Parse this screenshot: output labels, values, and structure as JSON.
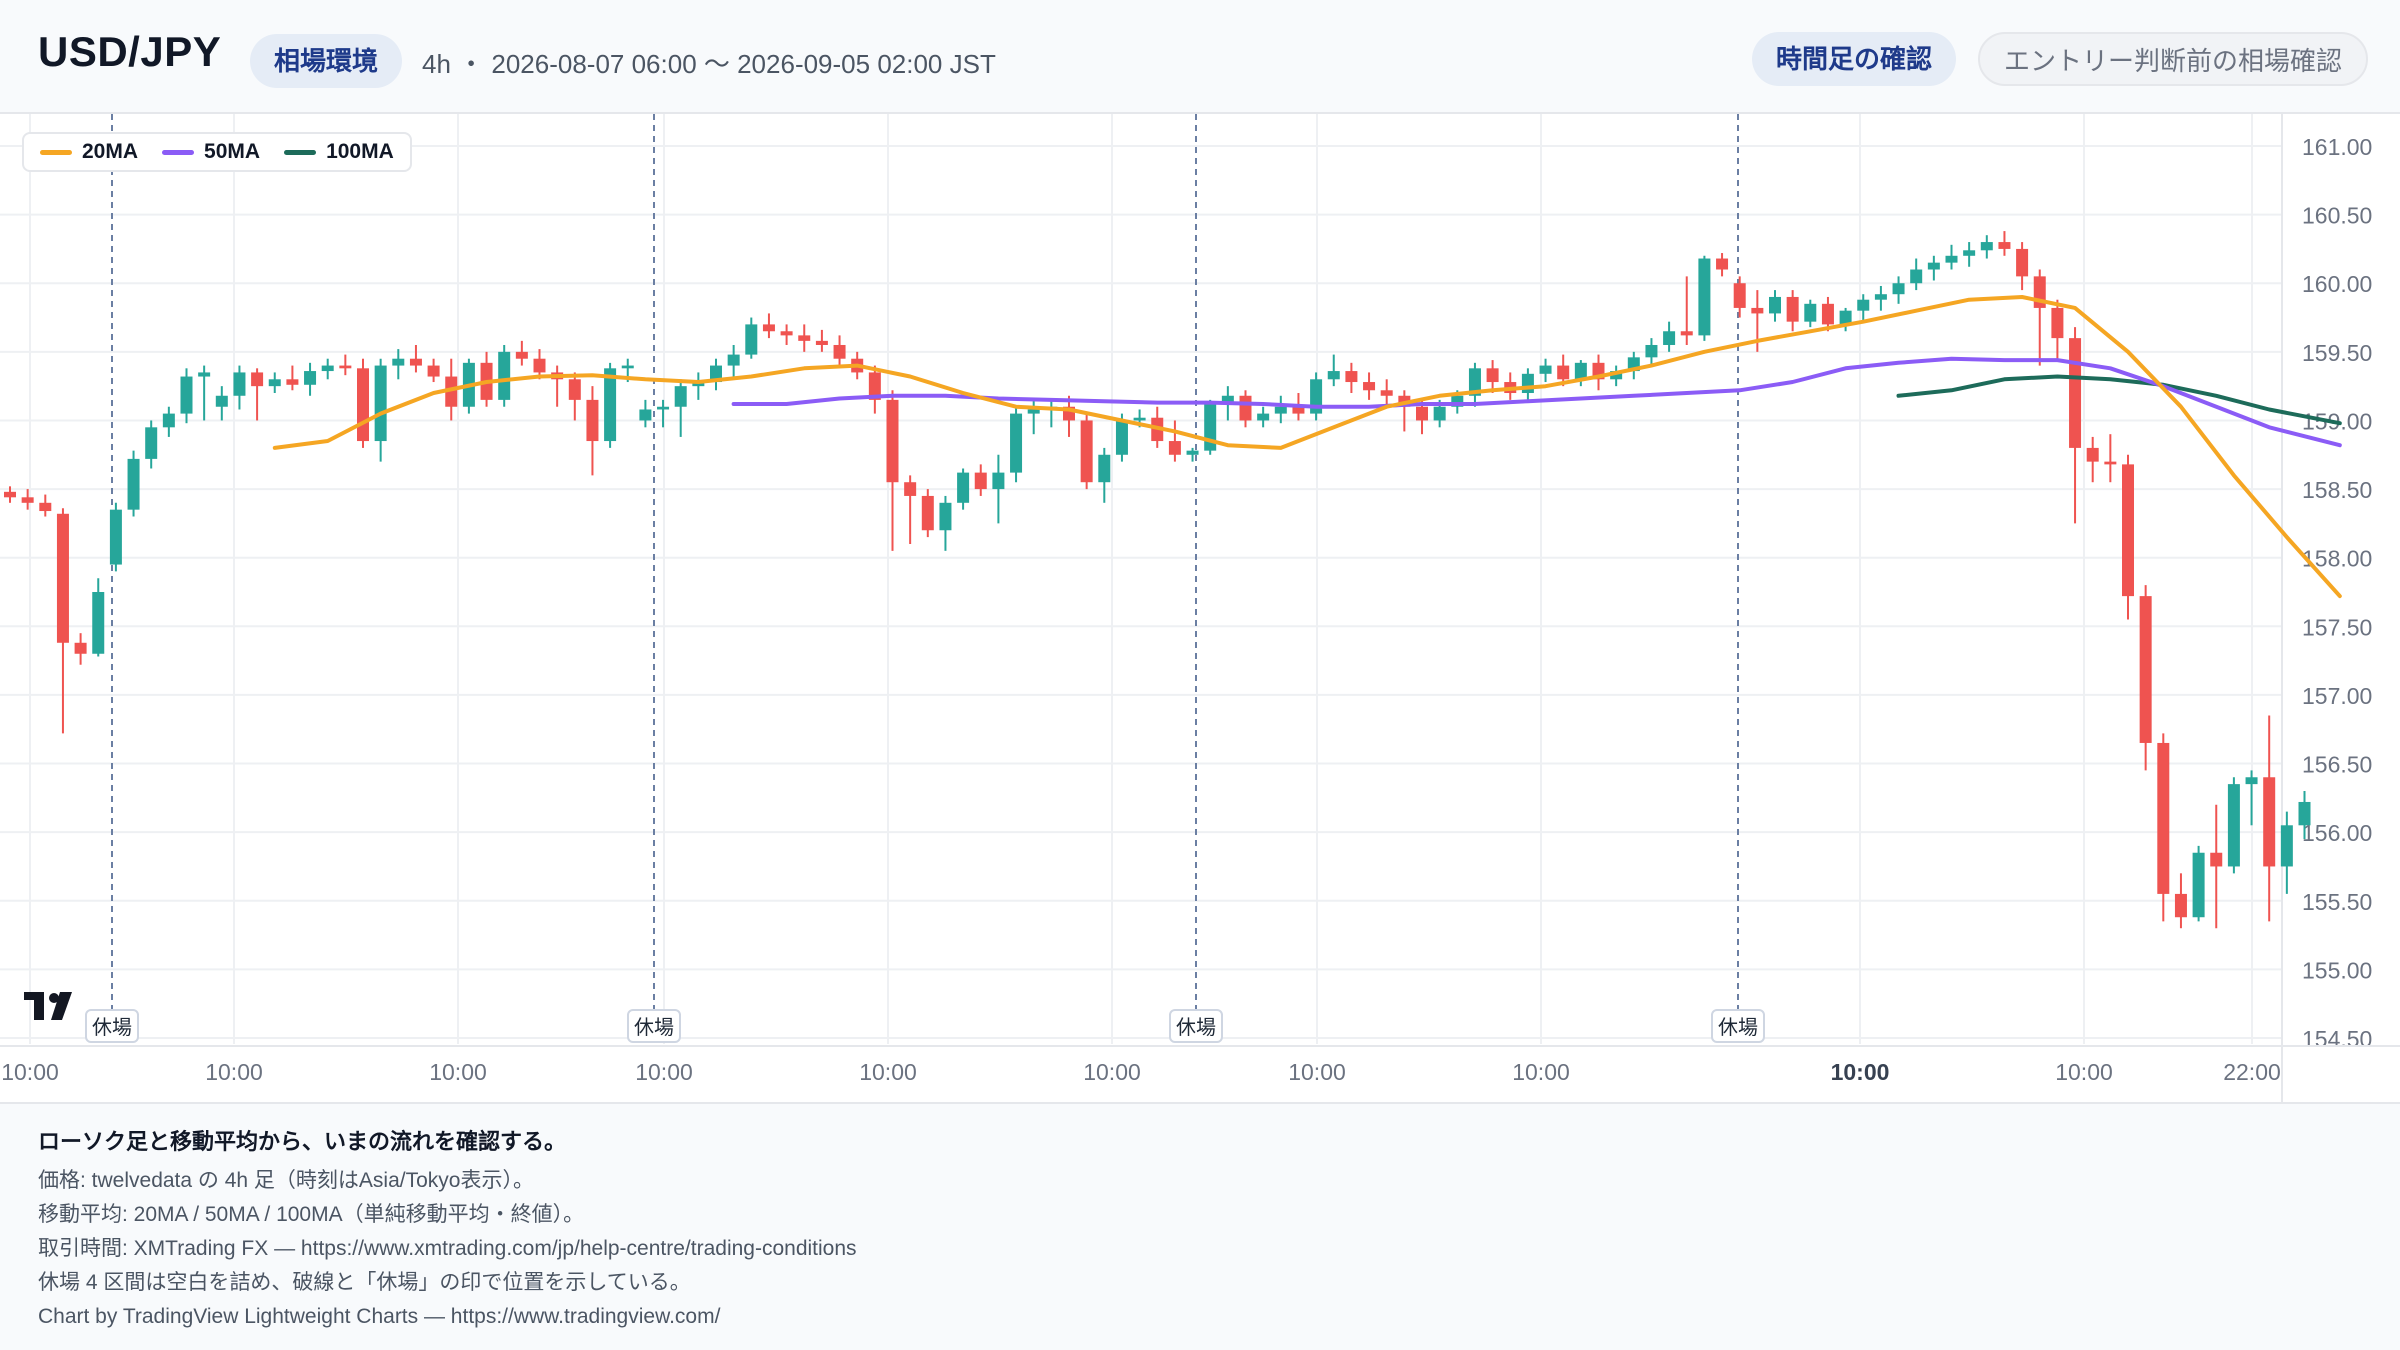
{
  "header": {
    "symbol": "USD/JPY",
    "context_pill": "相場環境",
    "meta": "4h ・ 2026-08-07 06:00 〜 2026-09-05 02:00 JST",
    "time_pill": "時間足の確認",
    "entry_pill": "エントリー判断前の相場確認"
  },
  "legend": {
    "items": [
      {
        "label": "20MA",
        "color": "#f5a623"
      },
      {
        "label": "50MA",
        "color": "#8b5cf6"
      },
      {
        "label": "100MA",
        "color": "#1d6b5a"
      }
    ]
  },
  "colors": {
    "up": "#26a69a",
    "down": "#ef5350",
    "grid": "#eef0f3",
    "break_line": "#6b7fa3"
  },
  "chart_data": {
    "type": "candlestick",
    "y_ticks": [
      "161.00",
      "160.50",
      "160.00",
      "159.50",
      "159.00",
      "158.50",
      "158.00",
      "157.50",
      "157.00",
      "156.50",
      "156.00",
      "155.50",
      "155.00",
      "154.50"
    ],
    "ylim": [
      154.5,
      161.0
    ],
    "x_ticks": [
      {
        "label": "10:00",
        "bold": false
      },
      {
        "label": "10:00",
        "bold": false
      },
      {
        "label": "10:00",
        "bold": false
      },
      {
        "label": "10:00",
        "bold": false
      },
      {
        "label": "10:00",
        "bold": false
      },
      {
        "label": "10:00",
        "bold": false
      },
      {
        "label": "10:00",
        "bold": false
      },
      {
        "label": "10:00",
        "bold": false
      },
      {
        "label": "10:00",
        "bold": true
      },
      {
        "label": "10:00",
        "bold": false
      },
      {
        "label": "22:00",
        "bold": false
      }
    ],
    "market_breaks": [
      "休場",
      "休場",
      "休場",
      "休場"
    ],
    "candles": [
      [
        158.48,
        158.52,
        158.4,
        158.44
      ],
      [
        158.44,
        158.5,
        158.35,
        158.4
      ],
      [
        158.4,
        158.46,
        158.3,
        158.34
      ],
      [
        158.32,
        158.36,
        156.72,
        157.38
      ],
      [
        157.38,
        157.45,
        157.22,
        157.3
      ],
      [
        157.3,
        157.85,
        157.28,
        157.75
      ],
      [
        157.95,
        158.4,
        157.9,
        158.35
      ],
      [
        158.35,
        158.78,
        158.3,
        158.72
      ],
      [
        158.72,
        159.0,
        158.65,
        158.95
      ],
      [
        158.95,
        159.1,
        158.88,
        159.05
      ],
      [
        159.05,
        159.38,
        158.98,
        159.32
      ],
      [
        159.32,
        159.4,
        159.0,
        159.35
      ],
      [
        159.1,
        159.25,
        159.0,
        159.18
      ],
      [
        159.18,
        159.4,
        159.08,
        159.35
      ],
      [
        159.35,
        159.38,
        159.0,
        159.25
      ],
      [
        159.25,
        159.35,
        159.2,
        159.3
      ],
      [
        159.3,
        159.4,
        159.22,
        159.26
      ],
      [
        159.26,
        159.42,
        159.18,
        159.36
      ],
      [
        159.36,
        159.45,
        159.3,
        159.4
      ],
      [
        159.4,
        159.48,
        159.33,
        159.38
      ],
      [
        159.38,
        159.45,
        158.8,
        158.85
      ],
      [
        158.85,
        159.45,
        158.7,
        159.4
      ],
      [
        159.4,
        159.52,
        159.3,
        159.45
      ],
      [
        159.45,
        159.55,
        159.35,
        159.4
      ],
      [
        159.4,
        159.45,
        159.28,
        159.32
      ],
      [
        159.32,
        159.45,
        159.0,
        159.1
      ],
      [
        159.1,
        159.45,
        159.05,
        159.42
      ],
      [
        159.42,
        159.5,
        159.1,
        159.15
      ],
      [
        159.15,
        159.55,
        159.1,
        159.5
      ],
      [
        159.5,
        159.58,
        159.4,
        159.45
      ],
      [
        159.45,
        159.52,
        159.3,
        159.35
      ],
      [
        159.35,
        159.4,
        159.1,
        159.3
      ],
      [
        159.3,
        159.35,
        159.0,
        159.15
      ],
      [
        159.15,
        159.25,
        158.6,
        158.85
      ],
      [
        158.85,
        159.42,
        158.8,
        159.38
      ],
      [
        159.38,
        159.45,
        159.28,
        159.4
      ],
      [
        159.0,
        159.15,
        158.95,
        159.08
      ],
      [
        159.08,
        159.15,
        158.95,
        159.1
      ],
      [
        159.1,
        159.3,
        158.88,
        159.25
      ],
      [
        159.25,
        159.35,
        159.15,
        159.28
      ],
      [
        159.28,
        159.45,
        159.22,
        159.4
      ],
      [
        159.4,
        159.55,
        159.32,
        159.48
      ],
      [
        159.48,
        159.75,
        159.45,
        159.7
      ],
      [
        159.7,
        159.78,
        159.6,
        159.65
      ],
      [
        159.65,
        159.7,
        159.55,
        159.62
      ],
      [
        159.62,
        159.7,
        159.5,
        159.58
      ],
      [
        159.58,
        159.66,
        159.5,
        159.55
      ],
      [
        159.55,
        159.62,
        159.4,
        159.45
      ],
      [
        159.45,
        159.5,
        159.3,
        159.35
      ],
      [
        159.35,
        159.4,
        159.05,
        159.15
      ],
      [
        159.15,
        159.22,
        158.05,
        158.55
      ],
      [
        158.55,
        158.6,
        158.1,
        158.45
      ],
      [
        158.45,
        158.5,
        158.15,
        158.2
      ],
      [
        158.2,
        158.45,
        158.05,
        158.4
      ],
      [
        158.4,
        158.65,
        158.35,
        158.62
      ],
      [
        158.62,
        158.68,
        158.45,
        158.5
      ],
      [
        158.5,
        158.75,
        158.25,
        158.62
      ],
      [
        158.62,
        159.1,
        158.55,
        159.05
      ],
      [
        159.05,
        159.15,
        158.9,
        159.08
      ],
      [
        159.08,
        159.15,
        158.95,
        159.1
      ],
      [
        159.1,
        159.18,
        158.88,
        159.0
      ],
      [
        159.0,
        159.05,
        158.5,
        158.55
      ],
      [
        158.55,
        158.8,
        158.4,
        158.75
      ],
      [
        158.75,
        159.05,
        158.7,
        159.0
      ],
      [
        159.0,
        159.08,
        158.95,
        159.02
      ],
      [
        159.02,
        159.1,
        158.8,
        158.85
      ],
      [
        158.85,
        159.0,
        158.7,
        158.75
      ],
      [
        158.75,
        158.8,
        158.7,
        158.78
      ],
      [
        158.78,
        159.15,
        158.75,
        159.12
      ],
      [
        159.12,
        159.25,
        159.0,
        159.18
      ],
      [
        159.18,
        159.22,
        158.95,
        159.0
      ],
      [
        159.0,
        159.1,
        158.95,
        159.05
      ],
      [
        159.05,
        159.18,
        158.98,
        159.1
      ],
      [
        159.1,
        159.2,
        159.0,
        159.05
      ],
      [
        159.05,
        159.35,
        159.0,
        159.3
      ],
      [
        159.3,
        159.48,
        159.25,
        159.36
      ],
      [
        159.36,
        159.42,
        159.2,
        159.28
      ],
      [
        159.28,
        159.35,
        159.15,
        159.22
      ],
      [
        159.22,
        159.3,
        159.1,
        159.18
      ],
      [
        159.18,
        159.22,
        158.92,
        159.1
      ],
      [
        159.1,
        159.15,
        158.9,
        159.0
      ],
      [
        159.0,
        159.15,
        158.95,
        159.1
      ],
      [
        159.1,
        159.22,
        159.05,
        159.18
      ],
      [
        159.18,
        159.42,
        159.1,
        159.38
      ],
      [
        159.38,
        159.44,
        159.2,
        159.28
      ],
      [
        159.28,
        159.35,
        159.15,
        159.2
      ],
      [
        159.2,
        159.38,
        159.15,
        159.34
      ],
      [
        159.34,
        159.45,
        159.28,
        159.4
      ],
      [
        159.4,
        159.48,
        159.25,
        159.3
      ],
      [
        159.3,
        159.44,
        159.25,
        159.42
      ],
      [
        159.42,
        159.48,
        159.22,
        159.3
      ],
      [
        159.3,
        159.4,
        159.25,
        159.36
      ],
      [
        159.36,
        159.5,
        159.3,
        159.46
      ],
      [
        159.46,
        159.6,
        159.4,
        159.55
      ],
      [
        159.55,
        159.72,
        159.5,
        159.65
      ],
      [
        159.65,
        160.05,
        159.55,
        159.62
      ],
      [
        159.62,
        160.2,
        159.58,
        160.18
      ],
      [
        160.18,
        160.22,
        160.05,
        160.1
      ],
      [
        160.0,
        160.05,
        159.75,
        159.82
      ],
      [
        159.82,
        159.95,
        159.5,
        159.78
      ],
      [
        159.78,
        159.95,
        159.72,
        159.9
      ],
      [
        159.9,
        159.95,
        159.65,
        159.72
      ],
      [
        159.72,
        159.88,
        159.68,
        159.85
      ],
      [
        159.85,
        159.9,
        159.65,
        159.7
      ],
      [
        159.7,
        159.82,
        159.65,
        159.8
      ],
      [
        159.8,
        159.92,
        159.72,
        159.88
      ],
      [
        159.88,
        159.98,
        159.8,
        159.92
      ],
      [
        159.92,
        160.05,
        159.85,
        160.0
      ],
      [
        160.0,
        160.18,
        159.95,
        160.1
      ],
      [
        160.1,
        160.2,
        160.02,
        160.15
      ],
      [
        160.15,
        160.28,
        160.1,
        160.2
      ],
      [
        160.2,
        160.3,
        160.12,
        160.24
      ],
      [
        160.24,
        160.35,
        160.18,
        160.3
      ],
      [
        160.3,
        160.38,
        160.2,
        160.25
      ],
      [
        160.25,
        160.3,
        159.95,
        160.05
      ],
      [
        160.05,
        160.1,
        159.4,
        159.82
      ],
      [
        159.82,
        159.88,
        159.45,
        159.6
      ],
      [
        159.6,
        159.68,
        158.25,
        158.8
      ],
      [
        158.8,
        158.88,
        158.55,
        158.7
      ],
      [
        158.7,
        158.9,
        158.55,
        158.68
      ],
      [
        158.68,
        158.75,
        157.55,
        157.72
      ],
      [
        157.72,
        157.8,
        156.45,
        156.65
      ],
      [
        156.65,
        156.72,
        155.35,
        155.55
      ],
      [
        155.55,
        155.7,
        155.3,
        155.38
      ],
      [
        155.38,
        155.9,
        155.35,
        155.85
      ],
      [
        155.85,
        156.2,
        155.3,
        155.75
      ],
      [
        155.75,
        156.4,
        155.7,
        156.35
      ],
      [
        156.35,
        156.45,
        156.05,
        156.4
      ],
      [
        156.4,
        156.85,
        155.35,
        155.75
      ],
      [
        155.75,
        156.15,
        155.55,
        156.05
      ],
      [
        156.05,
        156.3,
        155.95,
        156.22
      ]
    ],
    "ma20": [
      [
        15,
        158.8
      ],
      [
        18,
        158.85
      ],
      [
        21,
        159.05
      ],
      [
        24,
        159.2
      ],
      [
        27,
        159.28
      ],
      [
        30,
        159.32
      ],
      [
        33,
        159.33
      ],
      [
        36,
        159.3
      ],
      [
        39,
        159.28
      ],
      [
        42,
        159.32
      ],
      [
        45,
        159.38
      ],
      [
        48,
        159.4
      ],
      [
        51,
        159.32
      ],
      [
        54,
        159.2
      ],
      [
        57,
        159.1
      ],
      [
        60,
        159.08
      ],
      [
        63,
        159.0
      ],
      [
        66,
        158.92
      ],
      [
        69,
        158.82
      ],
      [
        72,
        158.8
      ],
      [
        75,
        158.95
      ],
      [
        78,
        159.1
      ],
      [
        81,
        159.18
      ],
      [
        84,
        159.22
      ],
      [
        87,
        159.25
      ],
      [
        90,
        159.32
      ],
      [
        93,
        159.4
      ],
      [
        96,
        159.5
      ],
      [
        99,
        159.58
      ],
      [
        102,
        159.65
      ],
      [
        105,
        159.72
      ],
      [
        108,
        159.8
      ],
      [
        111,
        159.88
      ],
      [
        114,
        159.9
      ],
      [
        117,
        159.82
      ],
      [
        120,
        159.5
      ],
      [
        123,
        159.1
      ],
      [
        126,
        158.6
      ],
      [
        129,
        158.15
      ],
      [
        132,
        157.72
      ]
    ],
    "ma50": [
      [
        41,
        159.12
      ],
      [
        44,
        159.12
      ],
      [
        47,
        159.16
      ],
      [
        50,
        159.18
      ],
      [
        53,
        159.18
      ],
      [
        56,
        159.16
      ],
      [
        59,
        159.15
      ],
      [
        62,
        159.14
      ],
      [
        65,
        159.13
      ],
      [
        68,
        159.13
      ],
      [
        71,
        159.12
      ],
      [
        74,
        159.1
      ],
      [
        77,
        159.1
      ],
      [
        80,
        159.12
      ],
      [
        83,
        159.12
      ],
      [
        86,
        159.14
      ],
      [
        89,
        159.16
      ],
      [
        92,
        159.18
      ],
      [
        95,
        159.2
      ],
      [
        98,
        159.22
      ],
      [
        101,
        159.28
      ],
      [
        104,
        159.38
      ],
      [
        107,
        159.42
      ],
      [
        110,
        159.45
      ],
      [
        113,
        159.44
      ],
      [
        116,
        159.44
      ],
      [
        119,
        159.38
      ],
      [
        122,
        159.25
      ],
      [
        125,
        159.1
      ],
      [
        128,
        158.95
      ],
      [
        132,
        158.82
      ]
    ],
    "ma100": [
      [
        107,
        159.18
      ],
      [
        110,
        159.22
      ],
      [
        113,
        159.3
      ],
      [
        116,
        159.32
      ],
      [
        119,
        159.3
      ],
      [
        122,
        159.26
      ],
      [
        125,
        159.18
      ],
      [
        128,
        159.08
      ],
      [
        132,
        158.98
      ]
    ]
  },
  "footer": {
    "title": "ローソク足と移動平均から、いまの流れを確認する。",
    "lines": [
      "価格: twelvedata の 4h 足（時刻はAsia/Tokyo表示）。",
      "移動平均: 20MA / 50MA / 100MA（単純移動平均・終値）。",
      "取引時間: XMTrading FX — https://www.xmtrading.com/jp/help-centre/trading-conditions",
      "休場 4 区間は空白を詰め、破線と「休場」の印で位置を示している。",
      "Chart by TradingView Lightweight Charts — https://www.tradingview.com/"
    ]
  }
}
